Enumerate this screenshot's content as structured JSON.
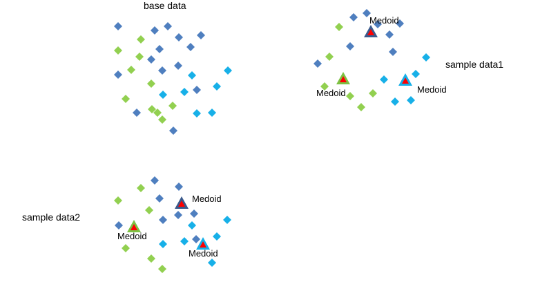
{
  "colors": {
    "dark": "#4f7fbf",
    "green": "#92d050",
    "cyan": "#17b0e8",
    "medoid_fill": "#ff0000",
    "medoid_dark_border": "#3b5a8c",
    "medoid_green_border": "#7dc142",
    "medoid_cyan_border": "#17b0e8"
  },
  "labels": {
    "base": "base data",
    "sample1": "sample data1",
    "sample2": "sample data2",
    "medoid": "Medoid"
  },
  "icons": {
    "point": "diamond-icon",
    "medoid": "triangle-icon"
  },
  "clusters": {
    "base": {
      "label": "base data",
      "points": [
        {
          "c": "dark"
        },
        {
          "c": "dark"
        },
        {
          "c": "dark"
        },
        {
          "c": "dark"
        },
        {
          "c": "dark"
        },
        {
          "c": "dark"
        },
        {
          "c": "dark"
        },
        {
          "c": "dark"
        },
        {
          "c": "dark"
        },
        {
          "c": "dark"
        },
        {
          "c": "dark"
        },
        {
          "c": "dark"
        },
        {
          "c": "dark"
        },
        {
          "c": "dark"
        },
        {
          "c": "green"
        },
        {
          "c": "green"
        },
        {
          "c": "green"
        },
        {
          "c": "green"
        },
        {
          "c": "green"
        },
        {
          "c": "green"
        },
        {
          "c": "green"
        },
        {
          "c": "green"
        },
        {
          "c": "green"
        },
        {
          "c": "green"
        },
        {
          "c": "cyan"
        },
        {
          "c": "cyan"
        },
        {
          "c": "cyan"
        },
        {
          "c": "cyan"
        },
        {
          "c": "cyan"
        },
        {
          "c": "cyan"
        },
        {
          "c": "cyan"
        }
      ]
    },
    "sample1": {
      "label": "sample data1",
      "points": [
        {
          "c": "dark"
        },
        {
          "c": "dark"
        },
        {
          "c": "dark"
        },
        {
          "c": "dark"
        },
        {
          "c": "dark"
        },
        {
          "c": "dark"
        },
        {
          "c": "dark"
        },
        {
          "c": "dark"
        },
        {
          "c": "green"
        },
        {
          "c": "green"
        },
        {
          "c": "green"
        },
        {
          "c": "green"
        },
        {
          "c": "green"
        },
        {
          "c": "green"
        },
        {
          "c": "cyan"
        },
        {
          "c": "cyan"
        },
        {
          "c": "cyan"
        },
        {
          "c": "cyan"
        },
        {
          "c": "cyan"
        }
      ],
      "medoids": [
        {
          "c": "dark",
          "label": "Medoid"
        },
        {
          "c": "green",
          "label": "Medoid"
        },
        {
          "c": "cyan",
          "label": "Medoid"
        }
      ]
    },
    "sample2": {
      "label": "sample data2",
      "points": [
        {
          "c": "dark"
        },
        {
          "c": "dark"
        },
        {
          "c": "dark"
        },
        {
          "c": "dark"
        },
        {
          "c": "dark"
        },
        {
          "c": "dark"
        },
        {
          "c": "dark"
        },
        {
          "c": "dark"
        },
        {
          "c": "green"
        },
        {
          "c": "green"
        },
        {
          "c": "green"
        },
        {
          "c": "green"
        },
        {
          "c": "green"
        },
        {
          "c": "green"
        },
        {
          "c": "cyan"
        },
        {
          "c": "cyan"
        },
        {
          "c": "cyan"
        },
        {
          "c": "cyan"
        },
        {
          "c": "cyan"
        },
        {
          "c": "cyan"
        }
      ],
      "medoids": [
        {
          "c": "dark",
          "label": "Medoid"
        },
        {
          "c": "green",
          "label": "Medoid"
        },
        {
          "c": "cyan",
          "label": "Medoid"
        }
      ]
    }
  }
}
